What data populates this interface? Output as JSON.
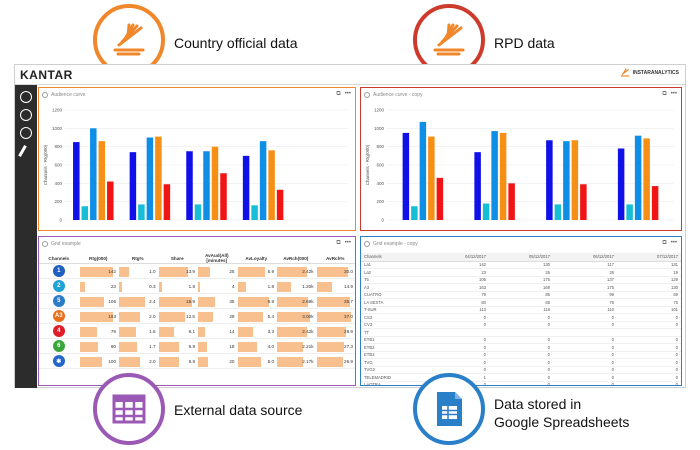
{
  "callouts": {
    "country": {
      "label": "Country official data",
      "color": "#f0872a",
      "icon": "wing-logo-icon"
    },
    "rpd": {
      "label": "RPD data",
      "color": "#cc3b2b",
      "icon": "wing-logo-icon"
    },
    "external": {
      "label": "External data source",
      "color": "#9b59b6",
      "icon": "table-grid-icon"
    },
    "sheets": {
      "line1": "Data stored in",
      "line2": "Google Spreadsheets",
      "color": "#2a7fc9",
      "icon": "spreadsheet-doc-icon"
    }
  },
  "app": {
    "brand": "KANTAR",
    "partner": "INSTARANALYTICS"
  },
  "panels": {
    "chart1": {
      "title": "Audience curve",
      "ylabel": "Channels - Rtg(000)"
    },
    "chart2": {
      "title": "Audience curve - copy",
      "ylabel": "Channels - Rtg(000)"
    },
    "grid1": {
      "title": "Grid example"
    },
    "grid2": {
      "title": "Grid example - copy"
    }
  },
  "chart_data": [
    {
      "type": "bar",
      "title": "Audience curve",
      "ylabel": "Channels - Rtg(000)",
      "ylim": [
        0,
        1200
      ],
      "yticks": [
        0,
        200,
        400,
        600,
        800,
        1000,
        1200
      ],
      "groups": 5,
      "colors": [
        "#1010e8",
        "#15bed6",
        "#0f8ee6",
        "#f68f16",
        "#f01414"
      ],
      "values": [
        [
          850,
          150,
          1000,
          860,
          420
        ],
        [
          740,
          170,
          900,
          910,
          390
        ],
        [
          750,
          170,
          750,
          800,
          510
        ],
        [
          700,
          160,
          860,
          760,
          330
        ],
        [
          0,
          0,
          0,
          0,
          0
        ]
      ]
    },
    {
      "type": "bar",
      "title": "Audience curve - copy",
      "ylabel": "Channels - Rtg(000)",
      "ylim": [
        0,
        1200
      ],
      "yticks": [
        0,
        200,
        400,
        600,
        800,
        1000,
        1200
      ],
      "groups": 4,
      "colors": [
        "#1010e8",
        "#15bed6",
        "#0f8ee6",
        "#f68f16",
        "#f01414"
      ],
      "values": [
        [
          950,
          150,
          1070,
          910,
          460
        ],
        [
          740,
          180,
          970,
          950,
          400
        ],
        [
          870,
          170,
          860,
          870,
          390
        ],
        [
          780,
          170,
          920,
          890,
          370
        ]
      ]
    }
  ],
  "grid1": {
    "columns": [
      "Channels",
      "Rtg(000)",
      "Rtg%",
      "Share",
      "AvAud(All) [minutes]",
      "AvLoyalty",
      "AvRch(000)",
      "AvRch%"
    ],
    "rows": [
      {
        "logo": "1",
        "logo_color": "#1f5fbf",
        "vals": [
          "142",
          "1.0",
          "13.9",
          "25",
          "5.9",
          "2.42k",
          "30.0"
        ],
        "fills": [
          0.95,
          0.3,
          0.85,
          0.35,
          0.8,
          0.85,
          0.9
        ]
      },
      {
        "logo": "2",
        "logo_color": "#1fa2d6",
        "vals": [
          "23",
          "0.3",
          "1.8",
          "4",
          "1.8",
          "1.20k",
          "14.9"
        ],
        "fills": [
          0.15,
          0.1,
          0.1,
          0.06,
          0.25,
          0.4,
          0.45
        ]
      },
      {
        "logo": "5",
        "logo_color": "#2d7cc7",
        "vals": [
          "106",
          "2.4",
          "15.9",
          "35",
          "6.8",
          "2.69k",
          "35.7"
        ],
        "fills": [
          0.7,
          0.75,
          0.95,
          0.5,
          0.9,
          0.9,
          0.95
        ]
      },
      {
        "logo": "A3",
        "logo_color": "#e8701a",
        "vals": [
          "163",
          "2.0",
          "12.5",
          "29",
          "5.4",
          "3.00k",
          "37.0"
        ],
        "fills": [
          0.95,
          0.6,
          0.75,
          0.42,
          0.72,
          0.95,
          0.98
        ]
      },
      {
        "logo": "4",
        "logo_color": "#e01e2a",
        "vals": [
          "79",
          "1.6",
          "8.1",
          "14",
          "3.3",
          "2.42k",
          "29.9"
        ],
        "fills": [
          0.5,
          0.5,
          0.45,
          0.2,
          0.45,
          0.85,
          0.85
        ]
      },
      {
        "logo": "6",
        "logo_color": "#3aa63a",
        "vals": [
          "80",
          "1.7",
          "9.9",
          "18",
          "4.0",
          "2.21k",
          "27.3"
        ],
        "fills": [
          0.52,
          0.52,
          0.6,
          0.26,
          0.55,
          0.75,
          0.78
        ]
      },
      {
        "logo": "✱",
        "logo_color": "#2266cc",
        "vals": [
          "100",
          "2.0",
          "9.8",
          "20",
          "5.0",
          "2.17k",
          "26.9"
        ],
        "fills": [
          0.65,
          0.6,
          0.6,
          0.3,
          0.68,
          0.74,
          0.76
        ]
      }
    ]
  },
  "grid2": {
    "columns": [
      "Channels",
      "04/12/2017",
      "05/12/2017",
      "06/12/2017",
      "07/12/2017"
    ],
    "rows": [
      [
        "La1",
        "142",
        "130",
        "117",
        "131"
      ],
      [
        "La2",
        "23",
        "26",
        "26",
        "19"
      ],
      [
        "T5",
        "106",
        "175",
        "137",
        "129"
      ],
      [
        "A3",
        "163",
        "169",
        "175",
        "130"
      ],
      [
        "CUATRO",
        "79",
        "85",
        "99",
        "69"
      ],
      [
        "LA SEXTA",
        "80",
        "68",
        "76",
        "75"
      ],
      [
        "T-SUR",
        "113",
        "118",
        "110",
        "101"
      ],
      [
        "CS2",
        "0",
        "0",
        "0",
        "0"
      ],
      [
        "CV3",
        "0",
        "0",
        "0",
        "0"
      ],
      [
        "TT",
        "",
        "",
        "",
        ""
      ],
      [
        "ETB1",
        "0",
        "0",
        "0",
        "0"
      ],
      [
        "ETB2",
        "0",
        "0",
        "0",
        "0"
      ],
      [
        "ETB3",
        "0",
        "0",
        "0",
        "0"
      ],
      [
        "TVG",
        "0",
        "0",
        "0",
        "0"
      ],
      [
        "TVG2",
        "0",
        "0",
        "0",
        "0"
      ],
      [
        "TELEMADRID",
        "1",
        "0",
        "0",
        "0"
      ],
      [
        "LAOTRA",
        "0",
        "0",
        "0",
        "0"
      ]
    ]
  }
}
